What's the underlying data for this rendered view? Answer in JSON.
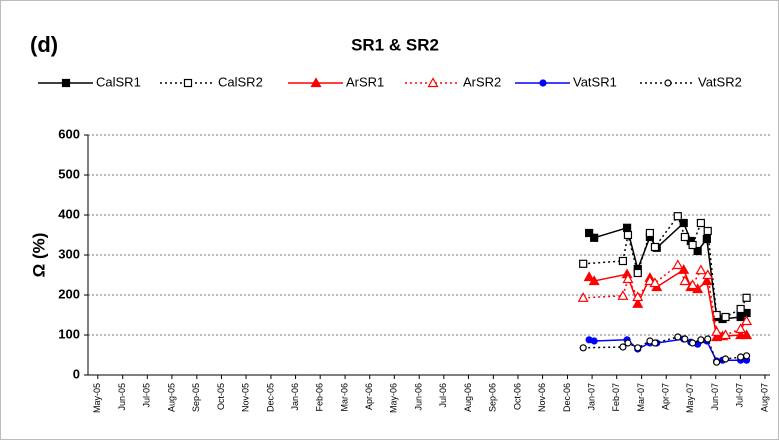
{
  "chart_data": {
    "type": "line",
    "panel_label": "(d)",
    "title": "SR1 & SR2",
    "y_label": "Ω (%)",
    "xlim": [
      2005.3,
      2007.6
    ],
    "xticks": [
      {
        "value": 2005.333,
        "label": "May-05"
      },
      {
        "value": 2005.417,
        "label": "Jun-05"
      },
      {
        "value": 2005.5,
        "label": "Jul-05"
      },
      {
        "value": 2005.583,
        "label": "Aug-05"
      },
      {
        "value": 2005.667,
        "label": "Sep-05"
      },
      {
        "value": 2005.75,
        "label": "Oct-05"
      },
      {
        "value": 2005.833,
        "label": "Nov-05"
      },
      {
        "value": 2005.917,
        "label": "Dec-05"
      },
      {
        "value": 2006,
        "label": "Jan-06"
      },
      {
        "value": 2006.083,
        "label": "Feb-06"
      },
      {
        "value": 2006.167,
        "label": "Mar-06"
      },
      {
        "value": 2006.25,
        "label": "Apr-06"
      },
      {
        "value": 2006.333,
        "label": "May-06"
      },
      {
        "value": 2006.417,
        "label": "Jun-06"
      },
      {
        "value": 2006.5,
        "label": "Jul-06"
      },
      {
        "value": 2006.583,
        "label": "Aug-06"
      },
      {
        "value": 2006.667,
        "label": "Sep-06"
      },
      {
        "value": 2006.75,
        "label": "Oct-06"
      },
      {
        "value": 2006.833,
        "label": "Nov-06"
      },
      {
        "value": 2006.917,
        "label": "Dec-06"
      },
      {
        "value": 2007,
        "label": "Jan-07"
      },
      {
        "value": 2007.083,
        "label": "Feb-07"
      },
      {
        "value": 2007.167,
        "label": "Mar-07"
      },
      {
        "value": 2007.25,
        "label": "Apr-07"
      },
      {
        "value": 2007.333,
        "label": "May-07"
      },
      {
        "value": 2007.417,
        "label": "Jun-07"
      },
      {
        "value": 2007.5,
        "label": "Jul-07"
      },
      {
        "value": 2007.583,
        "label": "Aug-07"
      }
    ],
    "ylim": [
      0,
      600
    ],
    "yticks": [
      0,
      100,
      200,
      300,
      400,
      500,
      600
    ],
    "grid": true,
    "series": [
      {
        "name": "CalSR1",
        "color": "#000000",
        "dashed": false,
        "marker": "square",
        "filled": true,
        "x": [
          2006.99,
          2007.007,
          2007.118,
          2007.154,
          2007.195,
          2007.218,
          2007.309,
          2007.333,
          2007.356,
          2007.387,
          2007.42,
          2007.44,
          2007.501,
          2007.521
        ],
        "values": [
          355,
          343,
          368,
          265,
          345,
          318,
          380,
          335,
          310,
          340,
          145,
          140,
          145,
          155
        ]
      },
      {
        "name": "CalSR2",
        "color": "#000000",
        "dashed": true,
        "marker": "square",
        "filled": false,
        "x": [
          2006.97,
          2007.104,
          2007.121,
          2007.154,
          2007.195,
          2007.212,
          2007.289,
          2007.313,
          2007.339,
          2007.367,
          2007.39,
          2007.42,
          2007.45,
          2007.501,
          2007.521
        ],
        "values": [
          278,
          285,
          350,
          255,
          355,
          320,
          397,
          345,
          325,
          380,
          360,
          150,
          145,
          165,
          193
        ]
      },
      {
        "name": "ArSR1",
        "color": "#ff0000",
        "dashed": false,
        "marker": "triangle",
        "filled": true,
        "x": [
          2006.99,
          2007.007,
          2007.118,
          2007.154,
          2007.195,
          2007.218,
          2007.309,
          2007.333,
          2007.356,
          2007.387,
          2007.42,
          2007.44,
          2007.501,
          2007.521
        ],
        "values": [
          245,
          235,
          252,
          178,
          243,
          220,
          263,
          220,
          215,
          235,
          95,
          97,
          100,
          100
        ]
      },
      {
        "name": "ArSR2",
        "color": "#ff0000",
        "dashed": true,
        "marker": "triangle",
        "filled": false,
        "x": [
          2006.97,
          2007.104,
          2007.121,
          2007.154,
          2007.195,
          2007.212,
          2007.289,
          2007.313,
          2007.339,
          2007.367,
          2007.39,
          2007.42,
          2007.45,
          2007.501,
          2007.521
        ],
        "values": [
          193,
          198,
          240,
          195,
          235,
          230,
          275,
          235,
          225,
          262,
          250,
          108,
          100,
          115,
          135
        ]
      },
      {
        "name": "VatSR1",
        "color": "#0000ff",
        "dashed": false,
        "marker": "circle",
        "filled": true,
        "x": [
          2006.99,
          2007.007,
          2007.118,
          2007.154,
          2007.195,
          2007.218,
          2007.309,
          2007.333,
          2007.356,
          2007.387,
          2007.42,
          2007.44,
          2007.501,
          2007.521
        ],
        "values": [
          88,
          85,
          88,
          65,
          80,
          80,
          90,
          82,
          77,
          85,
          35,
          37,
          37,
          37
        ]
      },
      {
        "name": "VatSR2",
        "color": "#000000",
        "dashed": true,
        "marker": "circle",
        "filled": false,
        "x": [
          2006.97,
          2007.104,
          2007.121,
          2007.154,
          2007.195,
          2007.212,
          2007.289,
          2007.313,
          2007.339,
          2007.367,
          2007.39,
          2007.42,
          2007.45,
          2007.501,
          2007.521
        ],
        "values": [
          68,
          70,
          80,
          68,
          85,
          80,
          95,
          90,
          80,
          88,
          90,
          32,
          40,
          45,
          48
        ]
      }
    ]
  }
}
